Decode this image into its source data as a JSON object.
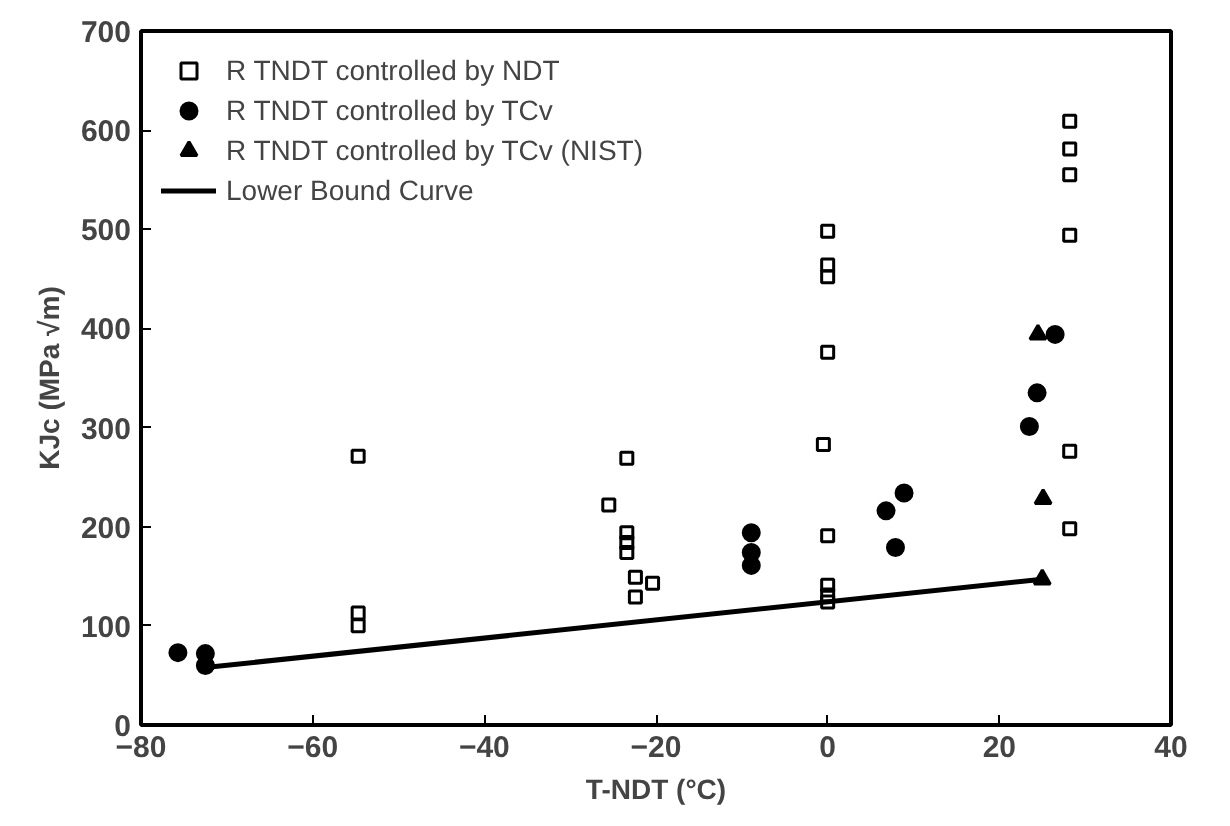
{
  "chart_data": {
    "type": "scatter",
    "xlabel": "T-NDT (°C)",
    "ylabel": "KJc (MPa √m)",
    "xlim": [
      -80,
      40
    ],
    "xticks": [
      -80,
      -60,
      -40,
      -20,
      0,
      20,
      40
    ],
    "ylim": [
      0,
      700
    ],
    "yticks": [
      0,
      100,
      200,
      300,
      400,
      500,
      600,
      700
    ],
    "grid": false,
    "legend": "top left",
    "series": [
      {
        "name": "R TNDT controlled by NDT",
        "color": "#000000",
        "marker": "square",
        "x": [
          -54.7,
          -54.7,
          -54.7,
          -25.5,
          -23.4,
          -23.4,
          -23.4,
          -23.4,
          -22.4,
          -22.4,
          -20.4,
          0,
          0,
          0,
          0,
          -0.5,
          0,
          0,
          0,
          0,
          28.2,
          28.2,
          28.2,
          28.2,
          28.2,
          28.2
        ],
        "values": [
          271,
          113,
          100,
          222,
          269,
          194,
          184,
          174,
          149,
          129,
          143,
          498,
          464,
          452,
          376,
          283,
          191,
          141,
          131,
          124,
          609,
          581,
          555,
          494,
          276,
          198
        ]
      },
      {
        "name": "R TNDT controlled by TCv",
        "color": "#000000",
        "marker": "circle",
        "x": [
          -75.7,
          -72.5,
          -72.5,
          -8.9,
          -8.9,
          -8.9,
          6.8,
          8.9,
          7.9,
          23.5,
          24.4,
          26.5
        ],
        "values": [
          73,
          72,
          60,
          194,
          174,
          161,
          216,
          234,
          179,
          301,
          335,
          394
        ]
      },
      {
        "name": "R TNDT controlled by TCv (NIST)",
        "color": "#000000",
        "marker": "triangle",
        "x": [
          24.5,
          25.1,
          25.0
        ],
        "values": [
          394,
          228,
          147
        ]
      },
      {
        "name": "Lower Bound Curve",
        "type": "line",
        "color": "#000000",
        "marker": "none",
        "line_style": "solid",
        "x": [
          -72.5,
          25.0
        ],
        "values": [
          58,
          147
        ]
      }
    ]
  }
}
